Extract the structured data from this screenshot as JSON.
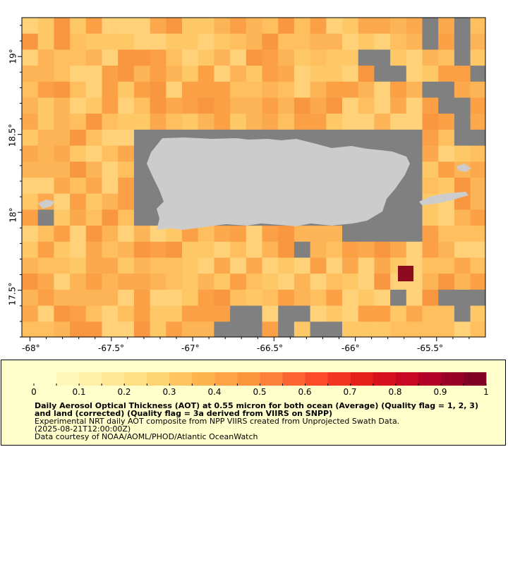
{
  "map": {
    "x_ticks": [
      "-68°",
      "-67.5°",
      "-67°",
      "-66.5°",
      "-66°",
      "-65.5°"
    ],
    "y_ticks": [
      "19°",
      "18.5°",
      "18°",
      "17.5°"
    ],
    "lon_range": [
      -68.05,
      -65.2
    ],
    "lat_range": [
      17.2,
      19.25
    ],
    "land_color": "#cccccc",
    "nodata_color": "#808080",
    "high_aot_color": "#8c0a1e"
  },
  "colorbar": {
    "tick_labels": [
      "0",
      "0.1",
      "0.2",
      "0.3",
      "0.4",
      "0.5",
      "0.6",
      "0.7",
      "0.8",
      "0.9",
      "1"
    ],
    "range": [
      0,
      1
    ],
    "colors": [
      "#ffffcc",
      "#ffeda0",
      "#fed976",
      "#feb24c",
      "#fd8d3c",
      "#fc4e2a",
      "#e31a1c",
      "#bd0026",
      "#800026"
    ]
  },
  "legend": {
    "title": "Daily Aerosol Optical Thickness (AOT) at 0.55 micron for both ocean (Average) (Quality flag = 1, 2, 3) and land (corrected) (Quality flag = 3a derived from VIIRS on SNPP)",
    "line1": "Experimental NRT daily AOT composite from NPP VIIRS created from Unprojected Swath Data.",
    "line2": "(2025-08-21T12:00:00Z)",
    "line3": "Data courtesy of NOAA/AOML/PHOD/Atlantic OceanWatch"
  }
}
